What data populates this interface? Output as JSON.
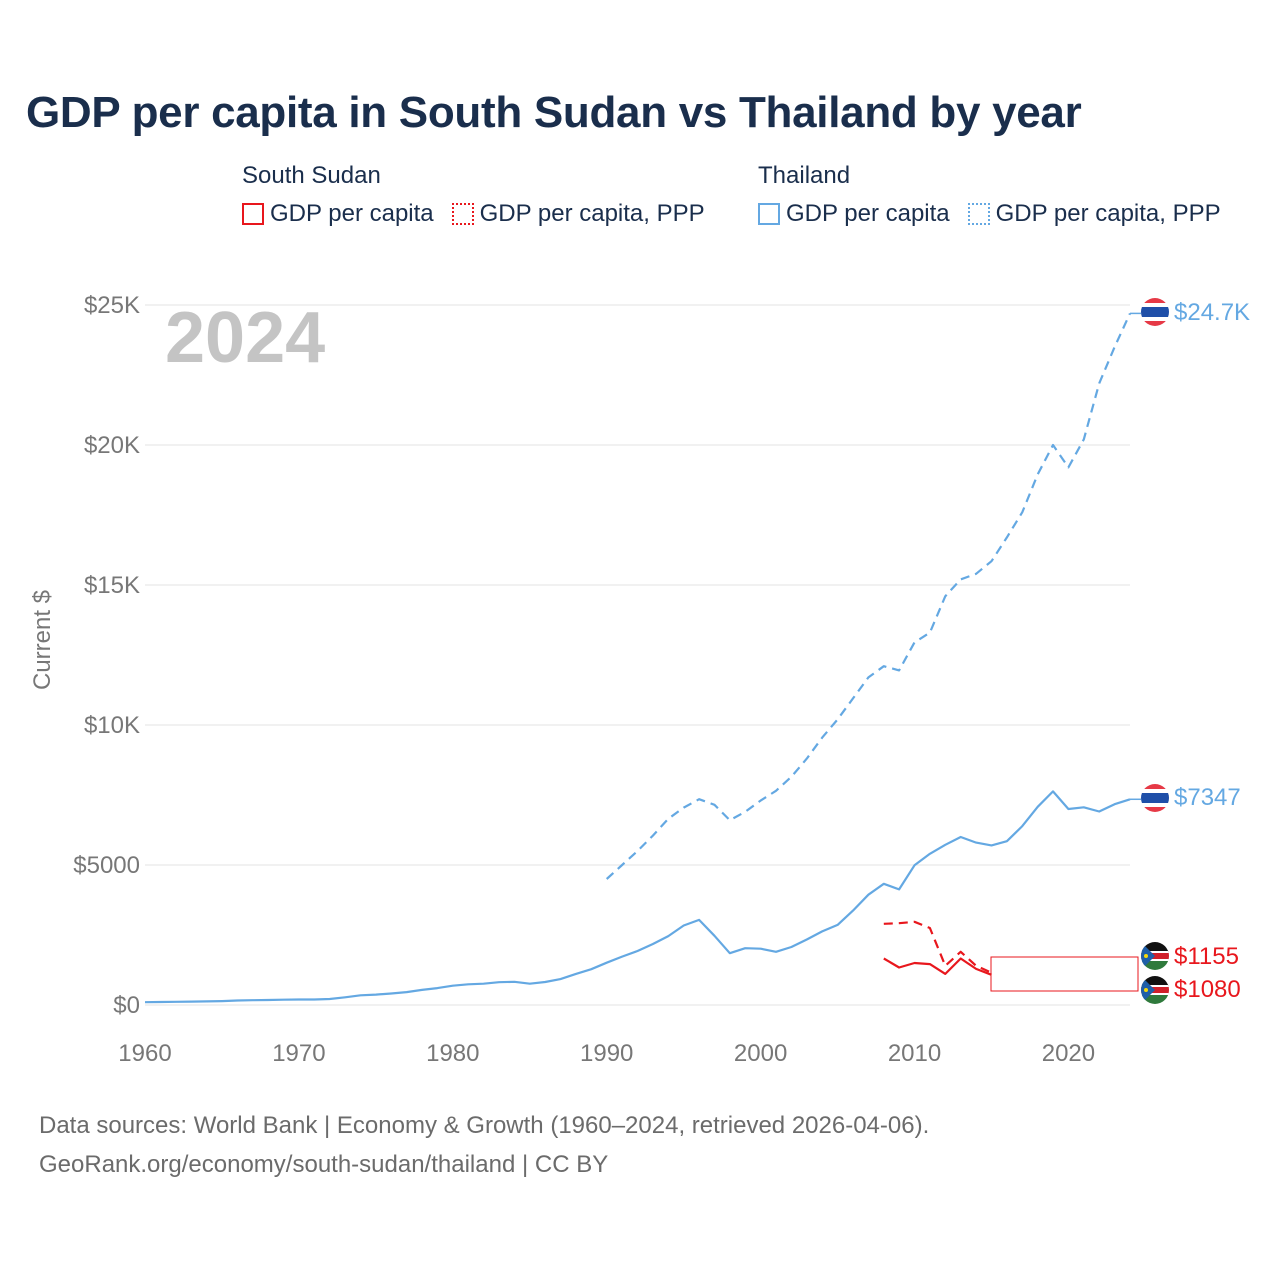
{
  "title": "GDP per capita in South Sudan vs Thailand by year",
  "legend": {
    "south_sudan": {
      "name": "South Sudan",
      "solid_label": "GDP per capita",
      "dotted_label": "GDP per capita, PPP",
      "color": "#e8171d"
    },
    "thailand": {
      "name": "Thailand",
      "solid_label": "GDP per capita",
      "dotted_label": "GDP per capita, PPP",
      "color": "#64a8e2"
    }
  },
  "year_label": "2024",
  "end_labels": {
    "thailand_ppp": "$24.7K",
    "thailand_gdp": "$7347",
    "south_sudan_ppp": "$1155",
    "south_sudan_gdp": "$1080"
  },
  "footer": {
    "line1": "Data sources: World Bank | Economy & Growth (1960–2024, retrieved 2026-04-06).",
    "line2": "GeoRank.org/economy/south-sudan/thailand | CC BY"
  },
  "chart_data": {
    "type": "line",
    "title": "GDP per capita in South Sudan vs Thailand by year",
    "xlabel": "",
    "ylabel": "Current $",
    "xlim": [
      1960,
      2024
    ],
    "ylim": [
      0,
      25000
    ],
    "x_ticks": [
      {
        "value": 1960,
        "label": "1960"
      },
      {
        "value": 1970,
        "label": "1970"
      },
      {
        "value": 1980,
        "label": "1980"
      },
      {
        "value": 1990,
        "label": "1990"
      },
      {
        "value": 2000,
        "label": "2000"
      },
      {
        "value": 2010,
        "label": "2010"
      },
      {
        "value": 2020,
        "label": "2020"
      }
    ],
    "y_ticks": [
      {
        "value": 0,
        "label": "$0"
      },
      {
        "value": 5000,
        "label": "$5000"
      },
      {
        "value": 10000,
        "label": "$10K"
      },
      {
        "value": 15000,
        "label": "$15K"
      },
      {
        "value": 20000,
        "label": "$20K"
      },
      {
        "value": 25000,
        "label": "$25K"
      }
    ],
    "grid": true,
    "series": [
      {
        "name": "Thailand GDP per capita",
        "style": "solid",
        "color": "#64a8e2",
        "x": [
          1960,
          1961,
          1962,
          1963,
          1964,
          1965,
          1966,
          1967,
          1968,
          1969,
          1970,
          1971,
          1972,
          1973,
          1974,
          1975,
          1976,
          1977,
          1978,
          1979,
          1980,
          1981,
          1982,
          1983,
          1984,
          1985,
          1986,
          1987,
          1988,
          1989,
          1990,
          1991,
          1992,
          1993,
          1994,
          1995,
          1996,
          1997,
          1998,
          1999,
          2000,
          2001,
          2002,
          2003,
          2004,
          2005,
          2006,
          2007,
          2008,
          2009,
          2010,
          2011,
          2012,
          2013,
          2014,
          2015,
          2016,
          2017,
          2018,
          2019,
          2020,
          2021,
          2022,
          2023,
          2024
        ],
        "values": [
          101,
          108,
          115,
          120,
          127,
          138,
          160,
          170,
          180,
          190,
          195,
          198,
          215,
          275,
          345,
          370,
          410,
          460,
          540,
          605,
          690,
          740,
          760,
          815,
          830,
          760,
          820,
          925,
          1110,
          1280,
          1510,
          1730,
          1930,
          2180,
          2460,
          2840,
          3040,
          2470,
          1850,
          2030,
          2010,
          1900,
          2070,
          2340,
          2630,
          2860,
          3370,
          3940,
          4330,
          4130,
          4990,
          5400,
          5720,
          6000,
          5800,
          5700,
          5850,
          6390,
          7080,
          7630,
          7000,
          7060,
          6910,
          7170,
          7347
        ]
      },
      {
        "name": "Thailand GDP per capita, PPP",
        "style": "dashed",
        "color": "#64a8e2",
        "x": [
          1990,
          1991,
          1992,
          1993,
          1994,
          1995,
          1996,
          1997,
          1998,
          1999,
          2000,
          2001,
          2002,
          2003,
          2004,
          2005,
          2006,
          2007,
          2008,
          2009,
          2010,
          2011,
          2012,
          2013,
          2014,
          2015,
          2016,
          2017,
          2018,
          2019,
          2020,
          2021,
          2022,
          2023,
          2024
        ],
        "values": [
          4500,
          5000,
          5500,
          6050,
          6650,
          7050,
          7350,
          7150,
          6600,
          6900,
          7300,
          7650,
          8150,
          8800,
          9550,
          10200,
          10950,
          11700,
          12100,
          11950,
          12950,
          13300,
          14600,
          15200,
          15400,
          15850,
          16700,
          17600,
          18950,
          20000,
          19200,
          20200,
          22200,
          23500,
          24700
        ]
      },
      {
        "name": "South Sudan GDP per capita",
        "style": "solid",
        "color": "#e8171d",
        "x": [
          2008,
          2009,
          2010,
          2011,
          2012,
          2013,
          2014,
          2015
        ],
        "values": [
          1660,
          1340,
          1500,
          1460,
          1110,
          1660,
          1290,
          1080
        ]
      },
      {
        "name": "South Sudan GDP per capita, PPP",
        "style": "dashed",
        "color": "#e8171d",
        "x": [
          2008,
          2009,
          2010,
          2011,
          2012,
          2013,
          2014,
          2015
        ],
        "values": [
          2900,
          2920,
          2970,
          2750,
          1400,
          1900,
          1400,
          1155
        ]
      }
    ]
  }
}
